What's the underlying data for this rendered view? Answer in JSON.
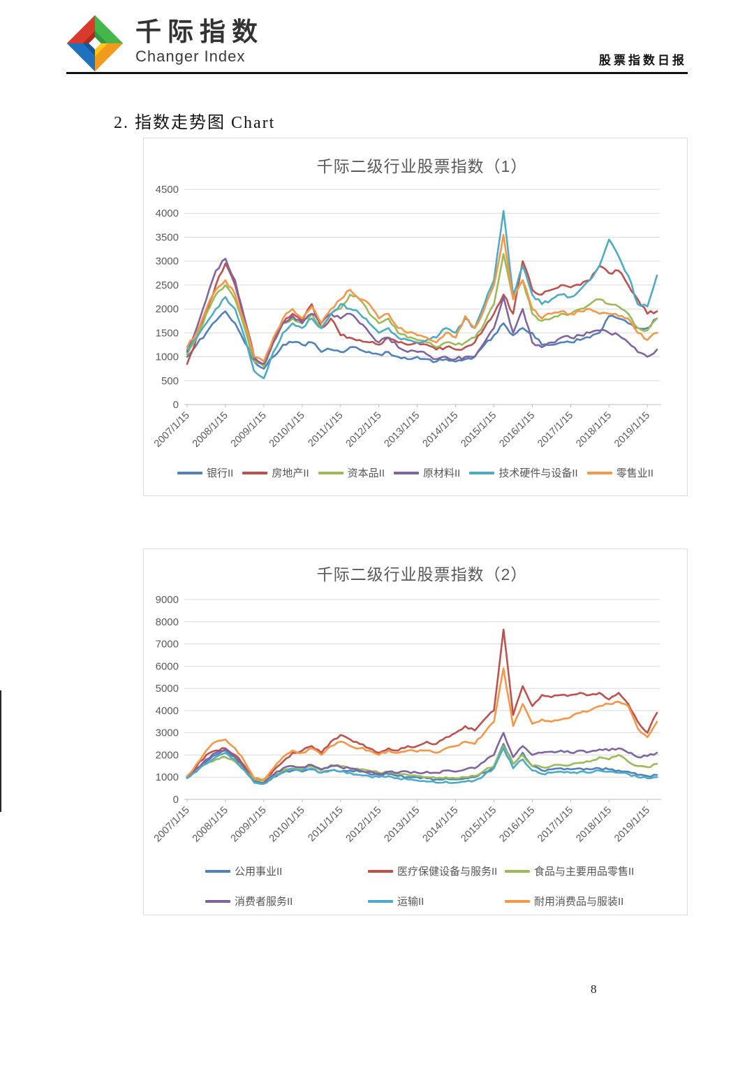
{
  "header": {
    "brand_cn": "千际指数",
    "brand_en": "Changer Index",
    "doc_title": "股票指数日报",
    "logo": {
      "red": "#d93a2b",
      "red_dark": "#b02a1e",
      "green": "#45b649",
      "green_dark": "#2f9a3e",
      "blue": "#1e72bd",
      "blue_dark": "#1559a3",
      "yellow": "#fdc813",
      "orange": "#f29a1d"
    }
  },
  "section": {
    "title": "2. 指数走势图 Chart"
  },
  "page": {
    "number": "8"
  },
  "chart_data": [
    {
      "type": "line",
      "title": "千际二级行业股票指数（1）",
      "x_labels": [
        "2007/1/15",
        "2008/1/15",
        "2009/1/15",
        "2010/1/15",
        "2011/1/15",
        "2012/1/15",
        "2013/1/15",
        "2014/1/15",
        "2015/1/15",
        "2016/1/15",
        "2017/1/15",
        "2018/1/15",
        "2019/1/15"
      ],
      "ylim": [
        0,
        4500
      ],
      "ytick_step": 500,
      "grid": true,
      "legend_position": "bottom",
      "series": [
        {
          "name": "银行II",
          "color": "#4F81BD",
          "values": [
            1000,
            1250,
            1500,
            1750,
            1950,
            1700,
            1300,
            900,
            750,
            1000,
            1250,
            1300,
            1250,
            1300,
            1100,
            1150,
            1100,
            1200,
            1150,
            1100,
            1050,
            1100,
            1000,
            950,
            1000,
            950,
            900,
            950,
            900,
            950,
            1000,
            1250,
            1450,
            1700,
            1450,
            1600,
            1500,
            1250,
            1250,
            1300,
            1300,
            1350,
            1400,
            1500,
            1850,
            1800,
            1700,
            1600,
            1600,
            1800
          ]
        },
        {
          "name": "房地产II",
          "color": "#C0504D",
          "values": [
            850,
            1400,
            1900,
            2500,
            2950,
            2500,
            1800,
            1000,
            800,
            1300,
            1700,
            1900,
            1750,
            2100,
            1600,
            1800,
            1450,
            1400,
            1350,
            1300,
            1250,
            1400,
            1300,
            1250,
            1300,
            1250,
            1150,
            1200,
            1150,
            1200,
            1300,
            1600,
            1900,
            2300,
            1900,
            3000,
            2400,
            2300,
            2400,
            2500,
            2450,
            2500,
            2600,
            2900,
            2750,
            2800,
            2500,
            2200,
            1900,
            1950
          ]
        },
        {
          "name": "资本品II",
          "color": "#9BBB59",
          "values": [
            1050,
            1400,
            1900,
            2300,
            2500,
            2200,
            1600,
            900,
            800,
            1300,
            1700,
            1800,
            1700,
            1900,
            1600,
            1900,
            2000,
            2300,
            2200,
            1900,
            1700,
            1800,
            1500,
            1400,
            1350,
            1300,
            1200,
            1300,
            1250,
            1300,
            1400,
            1700,
            2100,
            3150,
            2200,
            2600,
            1900,
            1750,
            1800,
            1900,
            1900,
            2000,
            2100,
            2200,
            2100,
            2050,
            1900,
            1600,
            1550,
            1800
          ]
        },
        {
          "name": "原材料II",
          "color": "#8064A2",
          "values": [
            1100,
            1600,
            2200,
            2800,
            3050,
            2600,
            1800,
            950,
            850,
            1300,
            1700,
            1850,
            1700,
            1900,
            1700,
            1900,
            1800,
            1900,
            1700,
            1500,
            1300,
            1400,
            1200,
            1100,
            1100,
            1050,
            950,
            1000,
            950,
            1000,
            1000,
            1300,
            1600,
            2250,
            1500,
            2000,
            1300,
            1200,
            1300,
            1400,
            1400,
            1450,
            1500,
            1550,
            1500,
            1450,
            1300,
            1100,
            1000,
            1150
          ]
        },
        {
          "name": "技术硬件与设备II",
          "color": "#4BACC6",
          "values": [
            1150,
            1400,
            1700,
            2000,
            2250,
            2000,
            1400,
            700,
            550,
            1100,
            1500,
            1700,
            1600,
            1800,
            1600,
            1900,
            2100,
            2000,
            1900,
            1700,
            1500,
            1600,
            1400,
            1350,
            1300,
            1350,
            1400,
            1600,
            1500,
            1800,
            1600,
            2100,
            2600,
            4050,
            2300,
            2900,
            2300,
            2100,
            2200,
            2300,
            2250,
            2400,
            2600,
            2900,
            3450,
            3100,
            2700,
            2100,
            2050,
            2700
          ]
        },
        {
          "name": "零售业II",
          "color": "#F79646",
          "values": [
            1200,
            1500,
            2000,
            2400,
            2600,
            2300,
            1700,
            1000,
            900,
            1400,
            1800,
            2000,
            1800,
            2050,
            1700,
            2000,
            2200,
            2400,
            2200,
            2100,
            1800,
            1900,
            1600,
            1500,
            1450,
            1400,
            1300,
            1500,
            1400,
            1850,
            1600,
            2000,
            2500,
            3550,
            2200,
            2600,
            2000,
            1800,
            1900,
            1950,
            1900,
            1950,
            2000,
            1900,
            1900,
            1850,
            1800,
            1500,
            1350,
            1500
          ]
        }
      ]
    },
    {
      "type": "line",
      "title": "千际二级行业股票指数（2）",
      "x_labels": [
        "2007/1/15",
        "2008/1/15",
        "2009/1/15",
        "2010/1/15",
        "2011/1/15",
        "2012/1/15",
        "2013/1/15",
        "2014/1/15",
        "2015/1/15",
        "2016/1/15",
        "2017/1/15",
        "2018/1/15",
        "2019/1/15"
      ],
      "ylim": [
        0,
        9000
      ],
      "ytick_step": 1000,
      "grid": true,
      "legend_position": "bottom",
      "series": [
        {
          "name": "公用事业II",
          "color": "#4F81BD",
          "values": [
            1000,
            1300,
            1700,
            2000,
            2200,
            1900,
            1400,
            800,
            750,
            1000,
            1200,
            1300,
            1250,
            1350,
            1200,
            1300,
            1250,
            1300,
            1250,
            1150,
            1100,
            1150,
            1050,
            1000,
            1000,
            950,
            900,
            950,
            900,
            950,
            1000,
            1200,
            1500,
            2500,
            1600,
            2100,
            1500,
            1300,
            1350,
            1400,
            1350,
            1400,
            1350,
            1400,
            1350,
            1300,
            1250,
            1100,
            1050,
            1100
          ]
        },
        {
          "name": "医疗保健设备与服务II",
          "color": "#C0504D",
          "values": [
            1000,
            1500,
            2000,
            2200,
            2300,
            2000,
            1500,
            900,
            850,
            1300,
            1700,
            2100,
            2200,
            2400,
            2100,
            2600,
            2900,
            2700,
            2500,
            2300,
            2100,
            2300,
            2200,
            2400,
            2400,
            2600,
            2500,
            2800,
            3000,
            3300,
            3100,
            3600,
            4000,
            7650,
            3800,
            5100,
            4200,
            4700,
            4600,
            4700,
            4700,
            4800,
            4700,
            4800,
            4500,
            4800,
            4300,
            3500,
            3000,
            3900
          ]
        },
        {
          "name": "食品与主要用品零售II",
          "color": "#9BBB59",
          "values": [
            1000,
            1300,
            1600,
            1800,
            1900,
            1700,
            1400,
            900,
            850,
            1100,
            1300,
            1400,
            1350,
            1500,
            1300,
            1550,
            1500,
            1400,
            1350,
            1300,
            1200,
            1250,
            1150,
            1100,
            1050,
            1000,
            950,
            1000,
            950,
            1000,
            1050,
            1300,
            1500,
            2400,
            1600,
            2000,
            1500,
            1450,
            1500,
            1550,
            1550,
            1650,
            1700,
            1900,
            1800,
            2000,
            1700,
            1500,
            1450,
            1600
          ]
        },
        {
          "name": "消费者服务II",
          "color": "#8064A2",
          "values": [
            1000,
            1400,
            1800,
            2100,
            2250,
            1900,
            1400,
            800,
            750,
            1100,
            1400,
            1500,
            1450,
            1550,
            1350,
            1500,
            1450,
            1400,
            1300,
            1250,
            1150,
            1250,
            1200,
            1250,
            1200,
            1250,
            1200,
            1300,
            1250,
            1350,
            1400,
            1700,
            2000,
            3000,
            1900,
            2400,
            2000,
            2100,
            2150,
            2200,
            2100,
            2200,
            2150,
            2250,
            2200,
            2300,
            2100,
            1900,
            1950,
            2100
          ]
        },
        {
          "name": "运输II",
          "color": "#4BACC6",
          "values": [
            950,
            1250,
            1600,
            1900,
            2100,
            1800,
            1300,
            750,
            700,
            1000,
            1250,
            1350,
            1300,
            1400,
            1200,
            1300,
            1250,
            1200,
            1100,
            1050,
            1000,
            1050,
            950,
            900,
            850,
            800,
            750,
            800,
            750,
            800,
            850,
            1100,
            1400,
            2300,
            1400,
            1800,
            1300,
            1150,
            1200,
            1250,
            1200,
            1250,
            1200,
            1300,
            1250,
            1200,
            1150,
            1000,
            950,
            1000
          ]
        },
        {
          "name": "耐用消费品与服装II",
          "color": "#F79646",
          "values": [
            1050,
            1600,
            2200,
            2600,
            2700,
            2300,
            1700,
            950,
            900,
            1400,
            1900,
            2200,
            2100,
            2300,
            2000,
            2400,
            2600,
            2400,
            2300,
            2200,
            2000,
            2200,
            2100,
            2200,
            2150,
            2200,
            2100,
            2300,
            2400,
            2600,
            2500,
            3000,
            3500,
            5900,
            3300,
            4300,
            3400,
            3600,
            3500,
            3600,
            3700,
            3900,
            4000,
            4200,
            4300,
            4400,
            4200,
            3200,
            2800,
            3500
          ]
        }
      ]
    }
  ]
}
